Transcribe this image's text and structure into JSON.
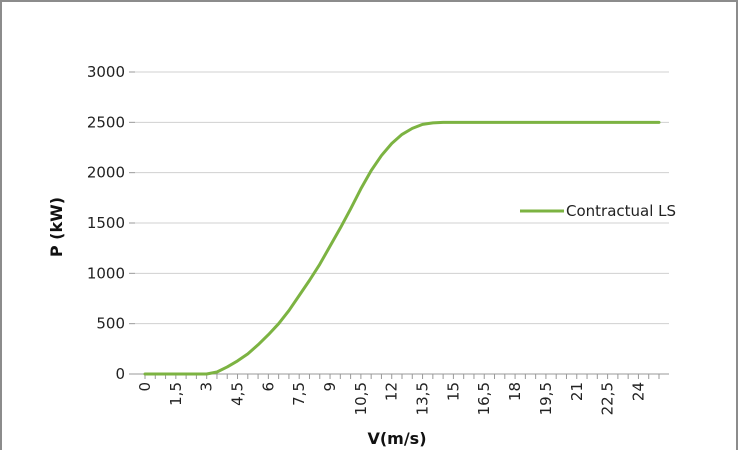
{
  "chart_data": {
    "type": "line",
    "title": "",
    "xlabel": "V(m/s)",
    "ylabel": "P (kW)",
    "ylim": [
      0,
      3000
    ],
    "yticks": [
      "0",
      "500",
      "1000",
      "1500",
      "2000",
      "2500",
      "3000"
    ],
    "yticks_values": [
      0,
      500,
      1000,
      1500,
      2000,
      2500,
      3000
    ],
    "categories": [
      "0",
      "0,5",
      "1",
      "1,5",
      "2",
      "2,5",
      "3",
      "3,5",
      "4",
      "4,5",
      "5",
      "5,5",
      "6",
      "6,5",
      "7",
      "7,5",
      "8",
      "8,5",
      "9",
      "9,5",
      "10",
      "10,5",
      "11",
      "11,5",
      "12",
      "12,5",
      "13",
      "13,5",
      "14",
      "14,5",
      "15",
      "15,5",
      "16",
      "16,5",
      "17",
      "17,5",
      "18",
      "18,5",
      "19",
      "19,5",
      "20",
      "20,5",
      "21",
      "21,5",
      "22",
      "22,5",
      "23",
      "23,5",
      "24",
      "24,5",
      "25"
    ],
    "xtick_labels": [
      "0",
      "1,5",
      "3",
      "4,5",
      "6",
      "7,5",
      "9",
      "10,5",
      "12",
      "13,5",
      "15",
      "16,5",
      "18",
      "19,5",
      "21",
      "22,5",
      "24"
    ],
    "series": [
      {
        "name": "Contractual LS",
        "color": "#7cb342",
        "values": [
          0,
          0,
          0,
          0,
          0,
          0,
          0,
          20,
          70,
          130,
          200,
          290,
          390,
          500,
          630,
          780,
          930,
          1090,
          1270,
          1450,
          1640,
          1840,
          2020,
          2170,
          2290,
          2380,
          2440,
          2480,
          2495,
          2500,
          2500,
          2500,
          2500,
          2500,
          2500,
          2500,
          2500,
          2500,
          2500,
          2500,
          2500,
          2500,
          2500,
          2500,
          2500,
          2500,
          2500,
          2500,
          2500,
          2500,
          2500
        ]
      }
    ],
    "grid": true,
    "legend": "right"
  }
}
